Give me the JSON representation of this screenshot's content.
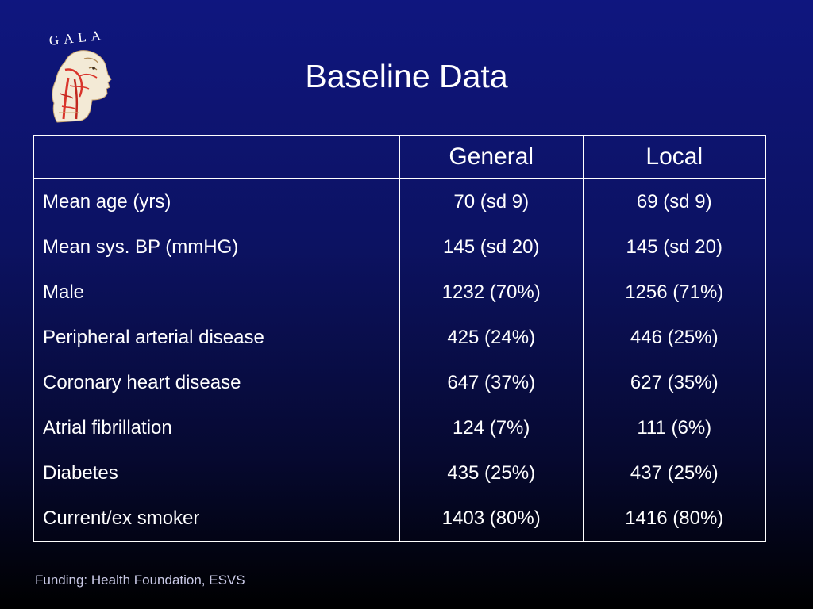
{
  "logo": {
    "text": "GALA"
  },
  "slide": {
    "title": "Baseline Data"
  },
  "table": {
    "headers": [
      "",
      "General",
      "Local"
    ],
    "rows": [
      {
        "label": "Mean age (yrs)",
        "general": "70 (sd 9)",
        "local": "69 (sd 9)"
      },
      {
        "label": "Mean sys. BP (mmHG)",
        "general": "145 (sd 20)",
        "local": "145 (sd 20)"
      },
      {
        "label": "Male",
        "general": "1232 (70%)",
        "local": "1256 (71%)"
      },
      {
        "label": "Peripheral arterial disease",
        "general": "425 (24%)",
        "local": "446 (25%)"
      },
      {
        "label": "Coronary heart disease",
        "general": "647 (37%)",
        "local": "627 (35%)"
      },
      {
        "label": "Atrial fibrillation",
        "general": "124 (7%)",
        "local": "111 (6%)"
      },
      {
        "label": "Diabetes",
        "general": "435 (25%)",
        "local": "437 (25%)"
      },
      {
        "label": "Current/ex smoker",
        "general": "1403 (80%)",
        "local": "1416 (80%)"
      }
    ]
  },
  "footer": {
    "text": "Funding: Health Foundation, ESVS"
  },
  "colors": {
    "background_top": "#0f167f",
    "background_bottom": "#000000",
    "text": "#ffffff",
    "footer_text": "#c9c9e6"
  }
}
